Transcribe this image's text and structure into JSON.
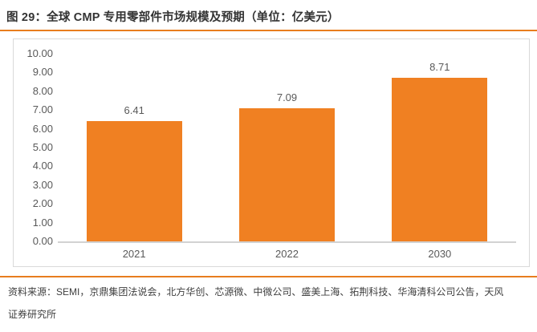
{
  "figure": {
    "number_and_title": "图 29：全球 CMP 专用零部件市场规模及预期（单位：亿美元）",
    "source_line_1": "资料来源：SEMI，京鼎集团法说会，北方华创、芯源微、中微公司、盛美上海、拓荆科技、华海清科公司公告，天风",
    "source_line_2": "证券研究所"
  },
  "colors": {
    "bar_orange": "#F08022",
    "rule_orange": "#E87D1E",
    "chart_border_gray": "#D9D9D9",
    "axis_line_gray": "#D2D2D2",
    "tick_text_gray": "#595959",
    "title_text": "#333333"
  },
  "chart_data": {
    "type": "bar",
    "title": "全球 CMP 专用零部件市场规模及预期",
    "unit": "亿美元",
    "categories": [
      "2021",
      "2022",
      "2030"
    ],
    "values": [
      6.41,
      7.09,
      8.71
    ],
    "value_labels": [
      "6.41",
      "7.09",
      "8.71"
    ],
    "xlabel": "",
    "ylabel": "",
    "ylim": [
      0,
      10
    ],
    "y_tick_step": 1,
    "y_tick_labels": [
      "10.00",
      "9.00",
      "8.00",
      "7.00",
      "6.00",
      "5.00",
      "4.00",
      "3.00",
      "2.00",
      "1.00",
      "0.00"
    ],
    "grid": false,
    "legend_position": "none",
    "bar_color": "#F08022"
  }
}
